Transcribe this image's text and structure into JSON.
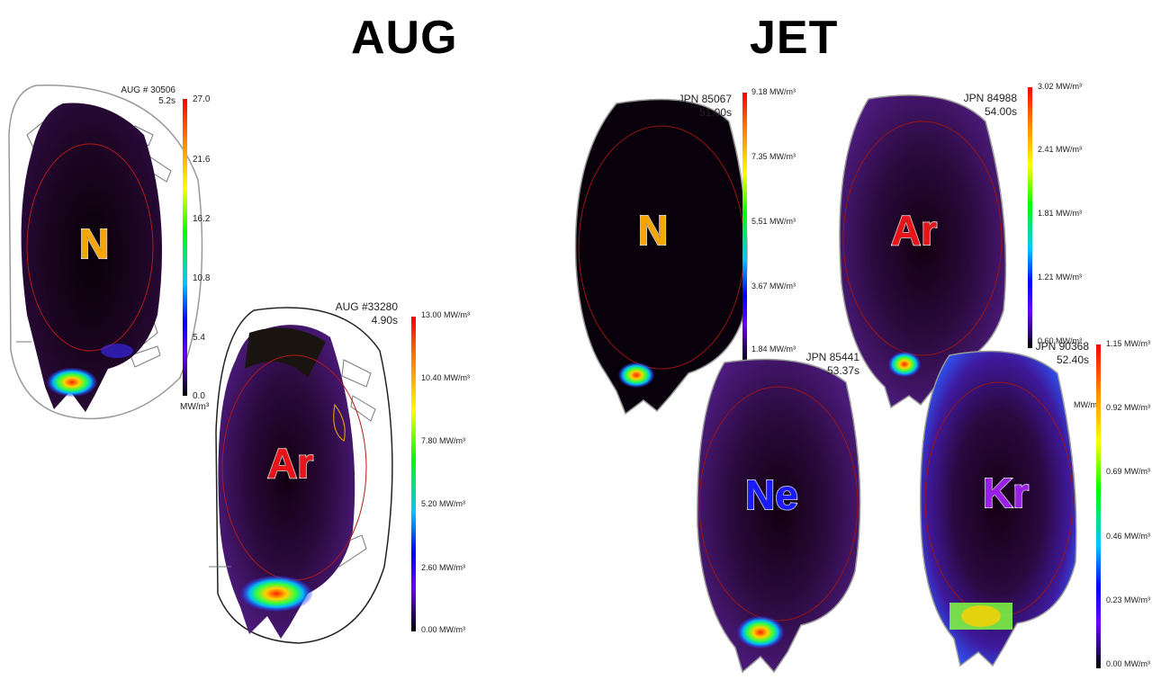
{
  "headings": {
    "aug": "AUG",
    "jet": "JET"
  },
  "panels": {
    "aug_30506": {
      "shot": "AUG # 30506",
      "time": "5.2s",
      "species": "N",
      "species_color": "#f5a700",
      "colorbar": {
        "ticks": [
          "27.0",
          "21.6",
          "16.2",
          "10.8",
          "5.4",
          "0.0"
        ],
        "unit": "MW/m³"
      }
    },
    "aug_33280": {
      "shot": "AUG #33280",
      "time": "4.90s",
      "species": "Ar",
      "species_color": "#e8141a",
      "colorbar": {
        "ticks": [
          "13.00 MW/m³",
          "10.40 MW/m³",
          "7.80 MW/m³",
          "5.20 MW/m³",
          "2.60 MW/m³",
          "0.00 MW/m³"
        ]
      }
    },
    "jpn_85067": {
      "shot": "JPN 85067",
      "time": "51.00s",
      "species": "N",
      "species_color": "#f5a700",
      "colorbar": {
        "ticks": [
          "9.18 MW/m³",
          "7.35 MW/m³",
          "5.51 MW/m³",
          "3.67 MW/m³",
          "1.84 MW/m³"
        ]
      }
    },
    "jpn_84988": {
      "shot": "JPN 84988",
      "time": "54.00s",
      "species": "Ar",
      "species_color": "#e8141a",
      "colorbar": {
        "ticks": [
          "3.02 MW/m³",
          "2.41 MW/m³",
          "1.81 MW/m³",
          "1.21 MW/m³",
          "0.60 MW/m³",
          "MW/m³"
        ]
      }
    },
    "jpn_85441": {
      "shot": "JPN 85441",
      "time": "53.37s",
      "species": "Ne",
      "species_color": "#1a1aff"
    },
    "jpn_90368": {
      "shot": "JPN 90368",
      "time": "52.40s",
      "species": "Kr",
      "species_color": "#9b1ee8",
      "colorbar": {
        "ticks": [
          "1.15 MW/m³",
          "0.92 MW/m³",
          "0.69 MW/m³",
          "0.46 MW/m³",
          "0.23 MW/m³",
          "0.00 MW/m³"
        ]
      }
    }
  }
}
